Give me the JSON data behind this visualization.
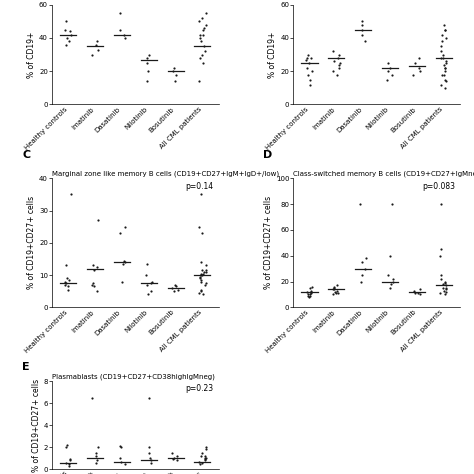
{
  "panel_C": {
    "title": "Marginal zone like memory B cells (CD19+CD27+IgM+IgD+/low)",
    "ylabel": "% of CD19+CD27+ cells",
    "ylim": [
      0,
      40
    ],
    "yticks": [
      0,
      10,
      20,
      30,
      40
    ],
    "pvalue": "p=0.14",
    "categories": [
      "Healthy controls",
      "Imatinib",
      "Dasatinib",
      "Nilotinib",
      "Bosutinib",
      "All CML patients"
    ],
    "medians": [
      7.5,
      12.0,
      14.0,
      7.5,
      6.0,
      10.0
    ],
    "data": [
      [
        6.5,
        7.0,
        7.5,
        8.0,
        8.5,
        9.0,
        5.5,
        35.0,
        13.0
      ],
      [
        11.5,
        12.5,
        13.0,
        7.0,
        6.5,
        7.5,
        27.0,
        5.0
      ],
      [
        13.5,
        14.0,
        14.5,
        23.0,
        25.0,
        8.0
      ],
      [
        7.5,
        8.0,
        7.0,
        10.0,
        13.5,
        4.0,
        5.0
      ],
      [
        5.5,
        6.0,
        6.5,
        7.0,
        5.0
      ],
      [
        9.5,
        10.5,
        11.5,
        10.0,
        10.5,
        11.0,
        8.5,
        7.5,
        13.0,
        14.0,
        11.5,
        5.0,
        5.5,
        4.5,
        4.0,
        23.0,
        25.0,
        35.0,
        7.0,
        8.0,
        9.0,
        10.0,
        11.0
      ]
    ]
  },
  "panel_D": {
    "title": "Class-switched memory B cells (CD19+CD27+IgMnegIgDneg)",
    "ylabel": "% of CD19+CD27+ cells",
    "ylim": [
      0,
      100
    ],
    "yticks": [
      0,
      20,
      40,
      60,
      80,
      100
    ],
    "pvalue": "p=0.083",
    "categories": [
      "Healthy controls",
      "Imatinib",
      "Dasatinib",
      "Nilotinib",
      "Bosutinib",
      "All CML patients"
    ],
    "medians": [
      12.0,
      14.0,
      30.0,
      20.0,
      12.0,
      17.0
    ],
    "data": [
      [
        9,
        11,
        13,
        10,
        12,
        8,
        9,
        15,
        10,
        12,
        16
      ],
      [
        12,
        15,
        14,
        13,
        11,
        10,
        11,
        16,
        17,
        14
      ],
      [
        30,
        35,
        38,
        20,
        25,
        80
      ],
      [
        20,
        22,
        25,
        18,
        80,
        40,
        15
      ],
      [
        11,
        13,
        14,
        10,
        11
      ],
      [
        15,
        18,
        20,
        14,
        15,
        17,
        19,
        22,
        25,
        12,
        13,
        40,
        45,
        10,
        11,
        80
      ]
    ]
  },
  "panel_E": {
    "title": "Plasmablasts (CD19+CD27+CD38highIgMneg)",
    "ylabel": "% of CD19+CD27+ cells",
    "ylim": [
      0,
      8
    ],
    "yticks": [
      0,
      2,
      4,
      6,
      8
    ],
    "pvalue": "p=0.23",
    "categories": [
      "Healthy controls",
      "Imatinib",
      "Dasatinib",
      "Nilotinib",
      "Bosutinib",
      "All CML patients"
    ],
    "medians": [
      0.6,
      1.0,
      0.7,
      0.8,
      1.0,
      0.7
    ],
    "data": [
      [
        0.5,
        0.8,
        0.3,
        0.6,
        0.9,
        2.0,
        2.2
      ],
      [
        0.8,
        1.5,
        2.0,
        1.2,
        0.6,
        6.5
      ],
      [
        0.7,
        1.0,
        2.1,
        0.5,
        2.0
      ],
      [
        0.8,
        1.0,
        0.6,
        2.0,
        1.5,
        6.5
      ],
      [
        0.9,
        1.2,
        1.0,
        1.5,
        0.8
      ],
      [
        0.5,
        0.8,
        1.0,
        1.2,
        0.6,
        0.7,
        0.9,
        1.5,
        1.8,
        2.0,
        1.0,
        1.2
      ]
    ]
  },
  "panel_AB_top": {
    "ylim_left": [
      0,
      60
    ],
    "yticks_left": [
      0,
      20,
      40,
      60
    ],
    "ylabel_left": "% of CD19+",
    "ylim_right": [
      0,
      60
    ],
    "yticks_right": [
      0,
      20,
      40,
      60
    ],
    "ylabel_right": "% of CD19+",
    "categories": [
      "Healthy controls",
      "Imatinib",
      "Dasatinib",
      "Nilotinib",
      "Bosutinib",
      "All CML patients"
    ],
    "medians_left": [
      42.0,
      35.0,
      42.0,
      27.0,
      20.0,
      35.0
    ],
    "medians_right": [
      25.0,
      28.0,
      45.0,
      22.0,
      23.0,
      28.0
    ],
    "data_left": [
      [
        40,
        42,
        44,
        38,
        36,
        50,
        45
      ],
      [
        33,
        36,
        38,
        30
      ],
      [
        40,
        42,
        45,
        55
      ],
      [
        25,
        28,
        30,
        20,
        14
      ],
      [
        18,
        20,
        22,
        14
      ],
      [
        30,
        35,
        40,
        42,
        45,
        50,
        25,
        28,
        14,
        55,
        48,
        32,
        38,
        42,
        46,
        52
      ]
    ],
    "data_right": [
      [
        22,
        25,
        27,
        20,
        18,
        28,
        30,
        15,
        12,
        28
      ],
      [
        25,
        28,
        30,
        22,
        18,
        24,
        32,
        26,
        20
      ],
      [
        42,
        45,
        48,
        38,
        50
      ],
      [
        20,
        22,
        25,
        18,
        15
      ],
      [
        20,
        22,
        25,
        18,
        28
      ],
      [
        20,
        22,
        25,
        28,
        30,
        35,
        40,
        15,
        18,
        12,
        38,
        42,
        45,
        10,
        14,
        28,
        32,
        45,
        22,
        24,
        26,
        18,
        48
      ]
    ]
  },
  "label_fontsize": 5.5,
  "title_fontsize": 5.0,
  "tick_fontsize": 5.0,
  "pval_fontsize": 5.5,
  "marker_size": 2.5,
  "median_lw": 0.9,
  "dot_color": "#1a1a1a"
}
